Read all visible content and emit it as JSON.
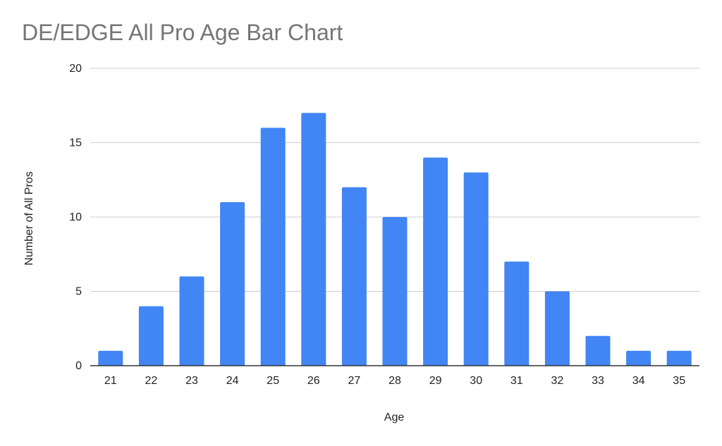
{
  "chart_data": {
    "type": "bar",
    "title": "DE/EDGE All Pro Age Bar Chart",
    "xlabel": "Age",
    "ylabel": "Number of All Pros",
    "categories": [
      "21",
      "22",
      "23",
      "24",
      "25",
      "26",
      "27",
      "28",
      "29",
      "30",
      "31",
      "32",
      "33",
      "34",
      "35"
    ],
    "values": [
      1,
      4,
      6,
      11,
      16,
      17,
      12,
      10,
      14,
      13,
      7,
      5,
      2,
      1,
      1
    ],
    "ylim": [
      0,
      20
    ],
    "yticks": [
      "0",
      "5",
      "10",
      "15",
      "20"
    ],
    "grid": true,
    "legend": "none",
    "colors": {
      "bar": "#4285f4",
      "grid": "#cccccc",
      "axis": "#333333",
      "title": "#757575",
      "text": "#222222"
    }
  }
}
